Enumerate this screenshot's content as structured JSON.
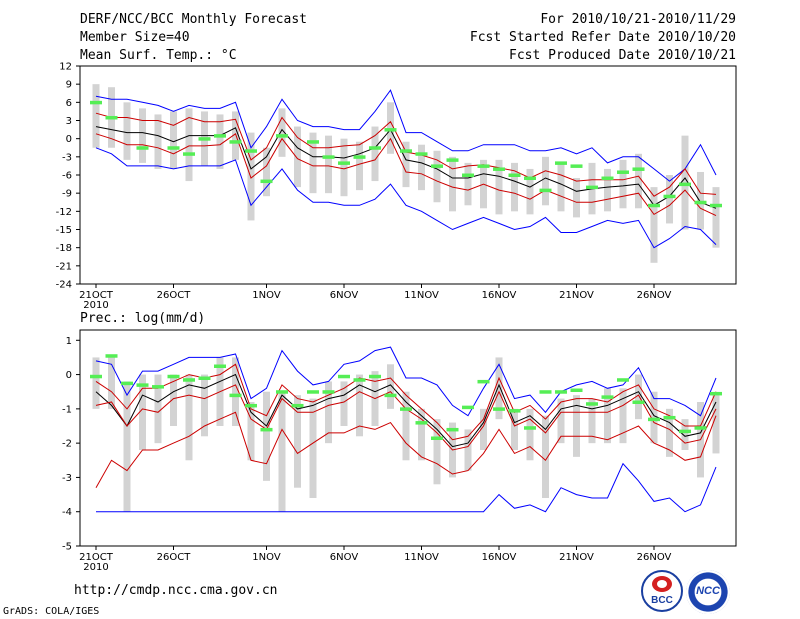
{
  "header": {
    "title": "DERF/NCC/BCC Monthly Forecast",
    "member_size": "Member Size=40",
    "variable": "Mean Surf. Temp.: °C",
    "period": "For 2010/10/21-2010/11/29",
    "started": "Fcst Started Refer Date 2010/10/20",
    "produced": "Fcst Produced Date 2010/10/21"
  },
  "footer": {
    "url": "http://cmdp.ncc.cma.gov.cn",
    "credit": "GrADS: COLA/IGES",
    "logo_left": "BCC",
    "logo_right": "NCC"
  },
  "colors": {
    "envelope": "#0000ff",
    "spread": "#cc0000",
    "mean": "#000000",
    "obs": "#55ee55",
    "bars": "#d3d3d3"
  },
  "chart_data": [
    {
      "type": "line",
      "title": "Mean Surf. Temp.: °C",
      "xlabel": "",
      "ylabel": "°C",
      "ylim": [
        -24,
        12
      ],
      "yticks": [
        12,
        9,
        6,
        3,
        0,
        -3,
        -6,
        -9,
        -12,
        -15,
        -18,
        -21,
        -24
      ],
      "xtick_labels": [
        {
          "day": 0,
          "label": "21OCT",
          "sub": "2010"
        },
        {
          "day": 5,
          "label": "26OCT"
        },
        {
          "day": 11,
          "label": "1NOV"
        },
        {
          "day": 16,
          "label": "6NOV"
        },
        {
          "day": 21,
          "label": "11NOV"
        },
        {
          "day": 26,
          "label": "16NOV"
        },
        {
          "day": 31,
          "label": "21NOV"
        },
        {
          "day": 36,
          "label": "26NOV"
        }
      ],
      "days": 40,
      "series": [
        {
          "name": "max",
          "color": "#0000ff",
          "values": [
            7,
            6.5,
            6.5,
            6,
            5.5,
            4.5,
            5.5,
            5,
            5,
            6,
            -1.5,
            2,
            6.5,
            3,
            2,
            2,
            1.5,
            1.5,
            4.5,
            8,
            1,
            1,
            -0.5,
            -2,
            -2,
            -1,
            -1,
            -1,
            -2,
            -2,
            -1.5,
            -2.5,
            -1.5,
            -4,
            -3,
            -3,
            -5,
            -7,
            -5,
            -1,
            -6
          ]
        },
        {
          "name": "upper",
          "color": "#cc0000",
          "values": [
            4.2,
            3.5,
            3.5,
            3,
            3,
            2.2,
            3.5,
            2.8,
            2.8,
            3.2,
            -3.5,
            -1.5,
            3.5,
            0.2,
            -1.5,
            -1.5,
            -1.2,
            -1,
            0.5,
            2.8,
            -2.2,
            -2.7,
            -3.5,
            -5,
            -4.5,
            -4.3,
            -4.8,
            -5.3,
            -6.5,
            -5.3,
            -6,
            -7,
            -6.8,
            -6.8,
            -6.8,
            -6.2,
            -9.5,
            -8,
            -5,
            -9,
            -9.2
          ]
        },
        {
          "name": "mean",
          "color": "#000000",
          "values": [
            2,
            1.5,
            1,
            1,
            0.5,
            -0.5,
            0.5,
            0.5,
            0.5,
            1.8,
            -5,
            -3,
            1.5,
            -1.5,
            -3,
            -3,
            -3.2,
            -2.5,
            -1.5,
            1.5,
            -3.5,
            -4,
            -5,
            -6.5,
            -6.5,
            -5.8,
            -6.2,
            -7,
            -8,
            -6.5,
            -7.5,
            -8.7,
            -8.3,
            -8,
            -7.8,
            -7.5,
            -11,
            -9.5,
            -6.5,
            -10.5,
            -11.5
          ]
        },
        {
          "name": "lower",
          "color": "#cc0000",
          "values": [
            0.8,
            0,
            -1,
            -1,
            -1.5,
            -2.5,
            -1.2,
            -1.2,
            -1,
            0.8,
            -6.5,
            -4.5,
            0,
            -3.3,
            -4.5,
            -4.5,
            -5,
            -4.2,
            -3.5,
            0,
            -5.5,
            -5.8,
            -7,
            -8,
            -8.5,
            -7.5,
            -8.5,
            -9,
            -10,
            -8.5,
            -9.5,
            -10.5,
            -10.5,
            -10,
            -9.5,
            -9,
            -12.5,
            -11,
            -8.5,
            -11.5,
            -12.7
          ]
        },
        {
          "name": "min",
          "color": "#0000ff",
          "values": [
            -1.5,
            -2.5,
            -4.5,
            -4.5,
            -4.5,
            -5,
            -4.5,
            -4.5,
            -4.5,
            -3.5,
            -11,
            -8,
            -5,
            -8.5,
            -10.5,
            -10.5,
            -11,
            -11,
            -10,
            -7.5,
            -11,
            -12,
            -13.5,
            -15,
            -14,
            -13,
            -14,
            -15,
            -14.5,
            -13,
            -15.5,
            -15.5,
            -14.5,
            -13.5,
            -14,
            -13.5,
            -18,
            -16.5,
            -14.5,
            -15,
            -17.5
          ]
        }
      ],
      "spread_bars": [
        [
          9,
          -1.5
        ],
        [
          8.5,
          -1.5
        ],
        [
          6,
          -3.5
        ],
        [
          5,
          -4
        ],
        [
          4,
          -5
        ],
        [
          4.5,
          -5
        ],
        [
          5,
          -7
        ],
        [
          4.5,
          -4.5
        ],
        [
          4,
          -5
        ],
        [
          4.5,
          -3.5
        ],
        [
          1,
          -13.5
        ],
        [
          -1.5,
          -9.5
        ],
        [
          5,
          -3
        ],
        [
          2,
          -8
        ],
        [
          1,
          -9
        ],
        [
          0.5,
          -9
        ],
        [
          0,
          -9.5
        ],
        [
          -0.5,
          -8.5
        ],
        [
          2,
          -7
        ],
        [
          6,
          -2.5
        ],
        [
          -0.5,
          -8
        ],
        [
          -1,
          -8.5
        ],
        [
          -2,
          -10.5
        ],
        [
          -3,
          -12
        ],
        [
          -4,
          -11
        ],
        [
          -3.5,
          -11.5
        ],
        [
          -3.5,
          -12.5
        ],
        [
          -4,
          -12
        ],
        [
          -5,
          -12.5
        ],
        [
          -3,
          -11
        ],
        [
          -4,
          -12
        ],
        [
          -6.5,
          -13
        ],
        [
          -4,
          -12.5
        ],
        [
          -5,
          -12
        ],
        [
          -3.5,
          -11.5
        ],
        [
          -2.5,
          -11.5
        ],
        [
          -8,
          -20.5
        ],
        [
          -6,
          -14
        ],
        [
          0.5,
          -15
        ],
        [
          -5.5,
          -15
        ],
        [
          -8,
          -18
        ]
      ],
      "observed": [
        6,
        3.5,
        null,
        -1.5,
        null,
        -1.5,
        -2.5,
        0,
        0.5,
        -0.5,
        -2,
        -7,
        0.5,
        null,
        -0.5,
        -3,
        -4,
        -3,
        -1.5,
        1.5,
        -2,
        -2.5,
        -4.5,
        -3.5,
        -6,
        -4.5,
        -5,
        -6,
        -6.5,
        -8.5,
        -4,
        -4.5,
        -8,
        -6.5,
        -5.5,
        -5,
        -11,
        -9.5,
        -7.5,
        -10.5,
        -11
      ]
    },
    {
      "type": "line",
      "title": "Prec.: log(mm/d)",
      "xlabel": "",
      "ylabel": "log(mm/d)",
      "ylim": [
        -5,
        1.3
      ],
      "yticks": [
        1,
        0,
        -1,
        -2,
        -3,
        -4,
        -5
      ],
      "xtick_labels": [
        {
          "day": 0,
          "label": "21OCT",
          "sub": "2010"
        },
        {
          "day": 5,
          "label": "26OCT"
        },
        {
          "day": 11,
          "label": "1NOV"
        },
        {
          "day": 16,
          "label": "6NOV"
        },
        {
          "day": 21,
          "label": "11NOV"
        },
        {
          "day": 26,
          "label": "16NOV"
        },
        {
          "day": 31,
          "label": "21NOV"
        },
        {
          "day": 36,
          "label": "26NOV"
        }
      ],
      "days": 40,
      "series": [
        {
          "name": "max",
          "color": "#0000ff",
          "values": [
            0.4,
            0.3,
            -0.6,
            0.1,
            0.1,
            0.3,
            0.5,
            0.5,
            0.5,
            0.6,
            -0.7,
            -0.4,
            0.7,
            0.1,
            -0.3,
            -0.2,
            0.3,
            0.4,
            0.7,
            0.8,
            -0.1,
            -0.1,
            -0.3,
            -0.9,
            -1.2,
            -0.4,
            0.3,
            -0.7,
            -0.6,
            -1.1,
            -0.5,
            -0.3,
            -0.2,
            -0.4,
            -0.3,
            0.2,
            -0.7,
            -0.7,
            -0.9,
            -1.2,
            -0.1
          ]
        },
        {
          "name": "upper",
          "color": "#cc0000",
          "values": [
            -0.2,
            -0.5,
            -1,
            -0.4,
            -0.4,
            -0.2,
            0,
            -0.1,
            0,
            0.3,
            -1,
            -1.2,
            -0.3,
            -0.7,
            -0.8,
            -0.6,
            -0.4,
            -0.1,
            -0.2,
            -0.1,
            -0.6,
            -1,
            -1.4,
            -1.9,
            -1.8,
            -1.3,
            -0.1,
            -1.1,
            -0.9,
            -1.3,
            -0.8,
            -0.7,
            -0.7,
            -0.8,
            -0.5,
            -0.3,
            -1,
            -1.2,
            -1.5,
            -1.5,
            -0.5
          ]
        },
        {
          "name": "mean",
          "color": "#000000",
          "values": [
            -0.5,
            -0.9,
            -1.5,
            -0.6,
            -0.8,
            -0.5,
            -0.3,
            -0.4,
            -0.2,
            0,
            -1.1,
            -1.5,
            -0.6,
            -1,
            -0.9,
            -0.7,
            -0.6,
            -0.3,
            -0.5,
            -0.3,
            -0.8,
            -1.2,
            -1.6,
            -2.1,
            -2,
            -1.4,
            -0.3,
            -1.4,
            -1.2,
            -1.6,
            -1,
            -0.9,
            -1,
            -0.9,
            -0.7,
            -0.5,
            -1.2,
            -1.4,
            -1.8,
            -1.7,
            -0.8
          ]
        },
        {
          "name": "lower",
          "color": "#cc0000",
          "values": [
            -0.9,
            -0.8,
            -1.5,
            -1,
            -1.1,
            -0.7,
            -0.6,
            -0.7,
            -0.5,
            -0.3,
            -1.3,
            -1.6,
            -0.7,
            -1.1,
            -1.1,
            -0.9,
            -0.8,
            -0.5,
            -0.7,
            -0.5,
            -1,
            -1.3,
            -1.7,
            -2.2,
            -2.1,
            -1.5,
            -0.5,
            -1.5,
            -1.3,
            -1.7,
            -1.1,
            -1.1,
            -1.1,
            -1.1,
            -0.9,
            -0.6,
            -1.4,
            -1.6,
            -2,
            -1.9,
            -1
          ]
        },
        {
          "name": "min",
          "color": "#cc0000",
          "values": [
            -3.3,
            -2.5,
            -2.8,
            -2.2,
            -2.2,
            -2,
            -1.8,
            -1.5,
            -1.3,
            -1.1,
            -2.5,
            -2.6,
            -1.6,
            -2.3,
            -2,
            -1.7,
            -1.7,
            -1.5,
            -1.6,
            -1.4,
            -2,
            -2.4,
            -2.6,
            -2.9,
            -2.8,
            -2.3,
            -1.6,
            -2.3,
            -2.1,
            -2.5,
            -1.8,
            -1.8,
            -1.8,
            -1.9,
            -1.7,
            -1.5,
            -2,
            -2.2,
            -2.5,
            -2.4,
            -1.2
          ]
        },
        {
          "name": "lowest",
          "color": "#0000ff",
          "values": [
            -4,
            -4,
            -4,
            -4,
            -4,
            -4,
            -4,
            -4,
            -4,
            -4,
            -4,
            -4,
            -4,
            -4,
            -4,
            -4,
            -4,
            -4,
            -4,
            -4,
            -4,
            -4,
            -4,
            -4,
            -4,
            -4,
            -3.5,
            -3.9,
            -3.8,
            -4,
            -3.3,
            -3.5,
            -3.6,
            -3.6,
            -2.6,
            -3.1,
            -3.7,
            -3.6,
            -4,
            -3.8,
            -2.7
          ]
        }
      ],
      "spread_bars": [
        [
          0.5,
          -1
        ],
        [
          0.5,
          -1
        ],
        [
          -0.2,
          -4
        ],
        [
          0,
          -2.2
        ],
        [
          0,
          -2
        ],
        [
          0,
          -1.5
        ],
        [
          0,
          -2.5
        ],
        [
          0,
          -1.8
        ],
        [
          0.5,
          -1.5
        ],
        [
          0.5,
          -1.5
        ],
        [
          -0.8,
          -2.5
        ],
        [
          -0.5,
          -3.1
        ],
        [
          -0.5,
          -4
        ],
        [
          -0.6,
          -3.3
        ],
        [
          -0.7,
          -3.6
        ],
        [
          -0.2,
          -2
        ],
        [
          -0.2,
          -1.5
        ],
        [
          0,
          -1.8
        ],
        [
          0.1,
          -1.5
        ],
        [
          0.3,
          -1
        ],
        [
          -0.5,
          -2.5
        ],
        [
          -1,
          -2.5
        ],
        [
          -1.3,
          -3.2
        ],
        [
          -1.4,
          -3
        ],
        [
          -1.6,
          -2.8
        ],
        [
          -1,
          -2.2
        ],
        [
          0.5,
          -1.3
        ],
        [
          -1,
          -2.2
        ],
        [
          -1,
          -2.5
        ],
        [
          -1.2,
          -3.6
        ],
        [
          -0.7,
          -2
        ],
        [
          -0.6,
          -2.4
        ],
        [
          -0.7,
          -2
        ],
        [
          -0.4,
          -2
        ],
        [
          -0.4,
          -2
        ],
        [
          0,
          -1.3
        ],
        [
          -0.5,
          -2
        ],
        [
          -1,
          -2.4
        ],
        [
          -1.3,
          -2.2
        ],
        [
          -0.8,
          -3
        ],
        [
          -0.6,
          -2.3
        ]
      ],
      "observed": [
        -0.05,
        0.55,
        -0.25,
        -0.3,
        -0.35,
        -0.05,
        -0.15,
        -0.1,
        0.25,
        -0.6,
        -0.9,
        -1.6,
        -0.5,
        -0.9,
        -0.5,
        -0.5,
        -0.05,
        -0.15,
        -0.05,
        -0.6,
        -1,
        -1.4,
        -1.85,
        -1.6,
        -0.95,
        -0.2,
        -1,
        -1.05,
        -1.55,
        -0.5,
        -0.5,
        -0.45,
        -0.85,
        -0.65,
        -0.15,
        -0.8,
        -1.3,
        -1.25,
        -1.65,
        -1.55,
        -0.55
      ]
    }
  ]
}
